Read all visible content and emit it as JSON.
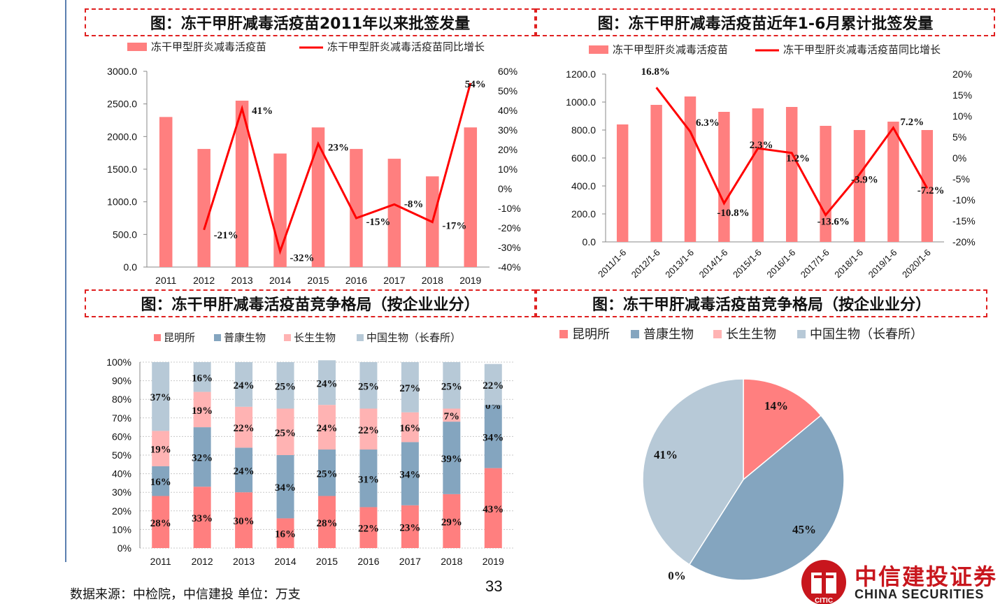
{
  "page": {
    "source_note": "数据来源：中检院，中信建投  单位：万支",
    "page_number": "33",
    "logo_cn": "中信建投证券",
    "logo_en": "CHINA SECURITIES",
    "logo_mark": "CITIC",
    "colors": {
      "red_bar": "#ff7f7f",
      "red_line": "#ff0000",
      "blue": "#84a5bf",
      "pink": "#ffb3b3",
      "lightblue": "#b7c9d7",
      "title_border": "#e02020"
    }
  },
  "chart_data": [
    {
      "id": "chart1",
      "type": "bar",
      "title": "图：冻干甲肝减毒活疫苗2011年以来批签发量",
      "legend": [
        "冻干甲型肝炎减毒活疫苗",
        "冻干甲型肝炎减毒活疫苗同比增长"
      ],
      "categories": [
        "2011",
        "2012",
        "2013",
        "2014",
        "2015",
        "2016",
        "2017",
        "2018",
        "2019"
      ],
      "series": [
        {
          "name": "冻干甲型肝炎减毒活疫苗",
          "values": [
            2300,
            1810,
            2550,
            1740,
            2140,
            1810,
            1660,
            1390,
            2140
          ]
        },
        {
          "name": "冻干甲型肝炎减毒活疫苗同比增长",
          "values": [
            null,
            -21,
            41,
            -32,
            23,
            -15,
            -8,
            -17,
            54
          ]
        }
      ],
      "growth_labels": [
        "",
        "-21%",
        "41%",
        "-32%",
        "23%",
        "-15%",
        "-8%",
        "-17%",
        "54%"
      ],
      "ylim": [
        0,
        3000
      ],
      "y_ticks": [
        "0.0",
        "500.0",
        "1000.0",
        "1500.0",
        "2000.0",
        "2500.0",
        "3000.0"
      ],
      "y2lim": [
        -40,
        60
      ],
      "y2_ticks": [
        "-40%",
        "-30%",
        "-20%",
        "-10%",
        "0%",
        "10%",
        "20%",
        "30%",
        "40%",
        "50%",
        "60%"
      ]
    },
    {
      "id": "chart2",
      "type": "bar",
      "title": "图：冻干甲肝减毒活疫苗近年1-6月累计批签发量",
      "legend": [
        "冻干甲型肝炎减毒活疫苗",
        "冻干甲型肝炎减毒活疫苗同比增长"
      ],
      "categories": [
        "2011/1-6",
        "2012/1-6",
        "2013/1-6",
        "2014/1-6",
        "2015/1-6",
        "2016/1-6",
        "2017/1-6",
        "2018/1-6",
        "2019/1-6",
        "2020/1-6"
      ],
      "series": [
        {
          "name": "冻干甲型肝炎减毒活疫苗",
          "values": [
            840,
            980,
            1040,
            930,
            955,
            965,
            830,
            800,
            860,
            800
          ]
        },
        {
          "name": "冻干甲型肝炎减毒活疫苗同比增长",
          "values": [
            null,
            16.8,
            6.3,
            -10.8,
            2.3,
            1.2,
            -13.6,
            -3.9,
            7.2,
            -7.2
          ]
        }
      ],
      "growth_labels": [
        "",
        "16.8%",
        "6.3%",
        "-10.8%",
        "2.3%",
        "1.2%",
        "-13.6%",
        "-3.9%",
        "7.2%",
        "-7.2%"
      ],
      "ylim": [
        0,
        1200
      ],
      "y_ticks": [
        "0.0",
        "200.0",
        "400.0",
        "600.0",
        "800.0",
        "1000.0",
        "1200.0"
      ],
      "y2lim": [
        -20,
        20
      ],
      "y2_ticks": [
        "-20%",
        "-15%",
        "-10%",
        "-5%",
        "0%",
        "5%",
        "10%",
        "15%",
        "20%"
      ]
    },
    {
      "id": "chart3",
      "type": "bar",
      "stacked": true,
      "title": "图：冻干甲肝减毒活疫苗竞争格局（按企业业分）",
      "categories": [
        "2011",
        "2012",
        "2013",
        "2014",
        "2015",
        "2016",
        "2017",
        "2018",
        "2019"
      ],
      "series": [
        {
          "name": "昆明所",
          "values": [
            28,
            33,
            30,
            16,
            28,
            22,
            23,
            29,
            43
          ]
        },
        {
          "name": "普康生物",
          "values": [
            16,
            32,
            24,
            34,
            25,
            31,
            34,
            39,
            34
          ]
        },
        {
          "name": "长生生物",
          "values": [
            19,
            19,
            22,
            25,
            24,
            22,
            16,
            7,
            0
          ]
        },
        {
          "name": "中国生物（长春所）",
          "values": [
            37,
            16,
            24,
            25,
            24,
            25,
            27,
            25,
            22
          ]
        }
      ],
      "ylim": [
        0,
        100
      ],
      "y_ticks": [
        "0%",
        "10%",
        "20%",
        "30%",
        "40%",
        "50%",
        "60%",
        "70%",
        "80%",
        "90%",
        "100%"
      ]
    },
    {
      "id": "chart4",
      "type": "pie",
      "title": "图：冻干甲肝减毒活疫苗竞争格局（按企业业分）",
      "labels": [
        "昆明所",
        "普康生物",
        "长生生物",
        "中国生物（长春所）"
      ],
      "values": [
        14,
        45,
        0,
        41
      ],
      "value_labels": [
        "14%",
        "45%",
        "0%",
        "41%"
      ]
    }
  ]
}
